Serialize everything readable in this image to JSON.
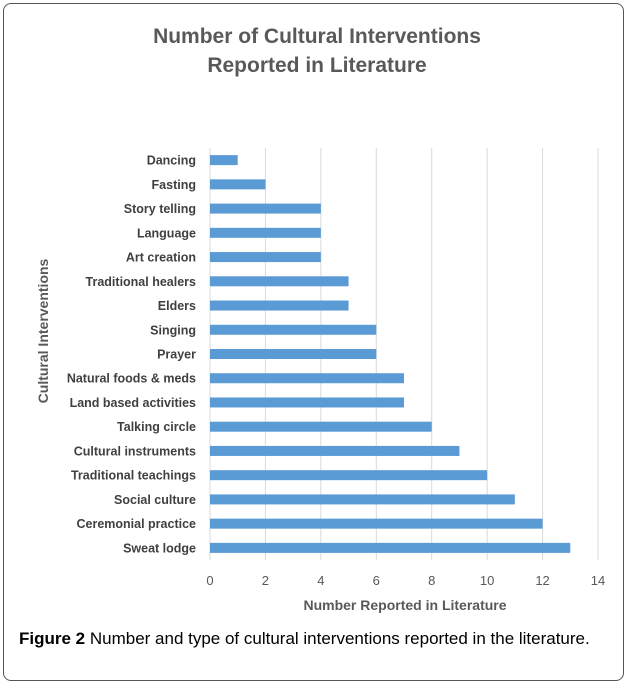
{
  "chart_data": {
    "type": "bar",
    "orientation": "horizontal",
    "title_lines": [
      "Number of Cultural Interventions",
      "Reported in Literature"
    ],
    "xlabel": "Number Reported in Literature",
    "ylabel": "Cultural Interventions",
    "xlim": [
      0,
      14
    ],
    "xticks": [
      "0",
      "2",
      "4",
      "6",
      "8",
      "10",
      "12",
      "14"
    ],
    "grid": true,
    "bar_color": "#5b9bd5",
    "categories": [
      "Dancing",
      "Fasting",
      "Story telling",
      "Language",
      "Art creation",
      "Traditional healers",
      "Elders",
      "Singing",
      "Prayer",
      "Natural foods & meds",
      "Land based activities",
      "Talking circle",
      "Cultural instruments",
      "Traditional teachings",
      "Social culture",
      "Ceremonial practice",
      "Sweat lodge"
    ],
    "values": [
      1,
      2,
      4,
      4,
      4,
      5,
      5,
      6,
      6,
      7,
      7,
      8,
      9,
      10,
      11,
      12,
      13
    ]
  },
  "caption": {
    "label": "Figure 2",
    "text": " Number and type of cultural interventions reported in the literature."
  }
}
